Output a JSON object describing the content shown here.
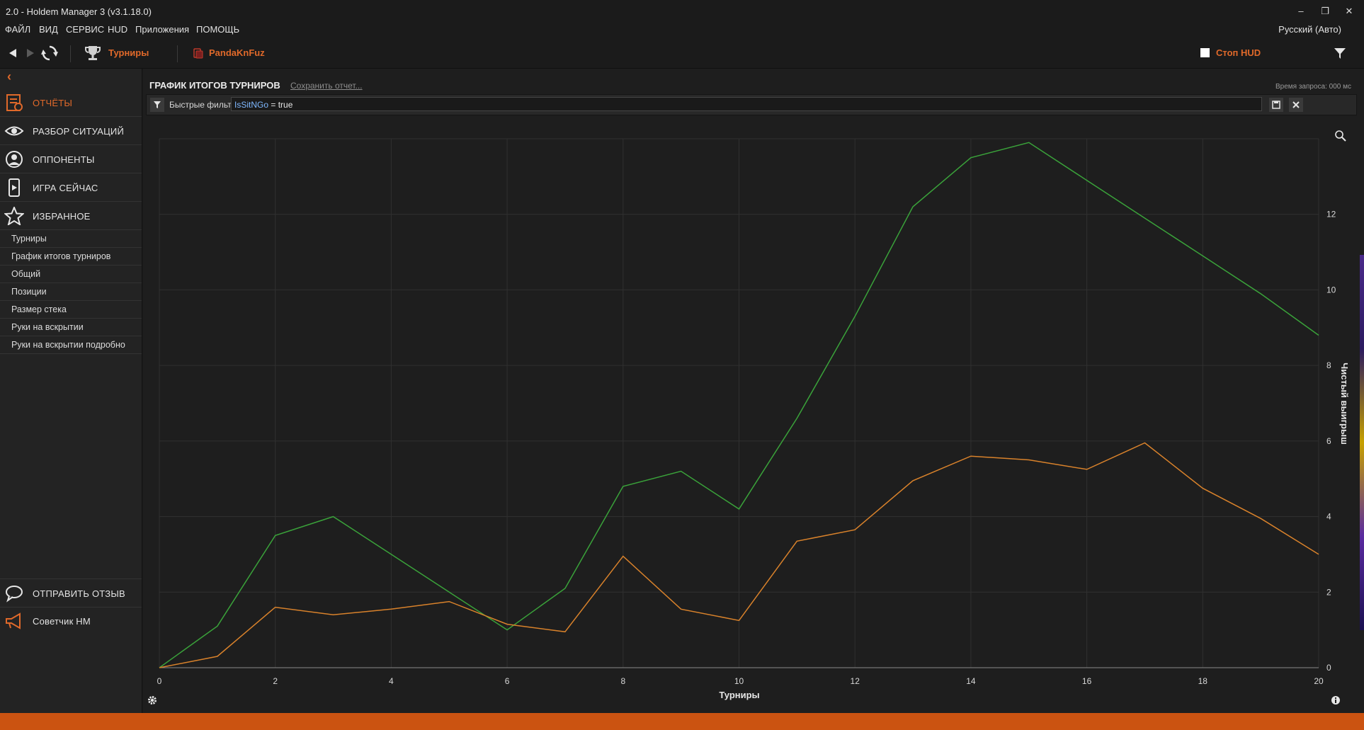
{
  "window": {
    "title": "2.0 - Holdem Manager 3 (v3.1.18.0)",
    "minimize_glyph": "–",
    "restore_glyph": "❐",
    "close_glyph": "✕"
  },
  "menu": {
    "items": [
      "ФАЙЛ",
      "ВИД",
      "СЕРВИС",
      "HUD",
      "Приложения",
      "ПОМОЩЬ"
    ],
    "language": "Русский (Авто)"
  },
  "toolbar": {
    "tournaments_label": "Турниры",
    "player_name": "PandaKnFuz",
    "stop_hud_label": "Стоп HUD"
  },
  "sidebar": {
    "collapse_glyph": "‹",
    "main_items": [
      {
        "label": "ОТЧЁТЫ",
        "icon": "report-icon",
        "active": true
      },
      {
        "label": "РАЗБОР СИТУАЦИЙ",
        "icon": "eye-icon"
      },
      {
        "label": "ОППОНЕНТЫ",
        "icon": "person-icon"
      },
      {
        "label": "ИГРА СЕЙЧАС",
        "icon": "phone-play-icon"
      },
      {
        "label": "ИЗБРАННОЕ",
        "icon": "star-icon"
      }
    ],
    "sub_items": [
      "Турниры",
      "График итогов турниров",
      "Общий",
      "Позиции",
      "Размер стека",
      "Руки на вскрытии",
      "Руки на вскрытии подробно"
    ],
    "bottom_items": [
      {
        "label": "ОТПРАВИТЬ ОТЗЫВ",
        "icon": "speech-bubble-icon"
      },
      {
        "label": "Советчик HM",
        "icon": "megaphone-icon"
      }
    ]
  },
  "report": {
    "title": "ГРАФИК ИТОГОВ ТУРНИРОВ",
    "save_link": "Сохранить отчет...",
    "query_time": "Время запроса: 000 мс"
  },
  "filter": {
    "label": "Быстрые фильт",
    "key": "IsSitNGo",
    "expression": " = true"
  },
  "colors": {
    "accent": "#e0692a",
    "series_green": "#3aa23a",
    "series_orange": "#d9822b",
    "statusbar": "#cb5311"
  },
  "chart_data": {
    "type": "line",
    "xlabel": "Турниры",
    "ylabel": "Чистый выигрыш",
    "xlim": [
      0,
      20
    ],
    "ylim": [
      0,
      14
    ],
    "xticks": [
      0,
      2,
      4,
      6,
      8,
      10,
      12,
      14,
      16,
      18,
      20
    ],
    "yticks": [
      0,
      2,
      4,
      6,
      8,
      10,
      12
    ],
    "grid": true,
    "x": [
      0,
      1,
      2,
      3,
      4,
      5,
      6,
      7,
      8,
      9,
      10,
      11,
      12,
      13,
      14,
      15,
      16,
      17,
      18,
      19,
      20
    ],
    "series": [
      {
        "color": "#3aa23a",
        "values": [
          0,
          1.1,
          3.5,
          4.0,
          3.0,
          2.0,
          1.0,
          2.1,
          4.8,
          5.2,
          4.2,
          6.6,
          9.3,
          12.2,
          13.5,
          13.9,
          12.9,
          11.9,
          10.9,
          9.9,
          8.8
        ]
      },
      {
        "color": "#d9822b",
        "values": [
          0,
          0.3,
          1.6,
          1.4,
          1.55,
          1.75,
          1.15,
          0.95,
          2.95,
          1.55,
          1.25,
          3.35,
          3.65,
          4.95,
          5.6,
          5.5,
          5.25,
          5.95,
          4.75,
          3.95,
          3.0
        ]
      }
    ]
  }
}
